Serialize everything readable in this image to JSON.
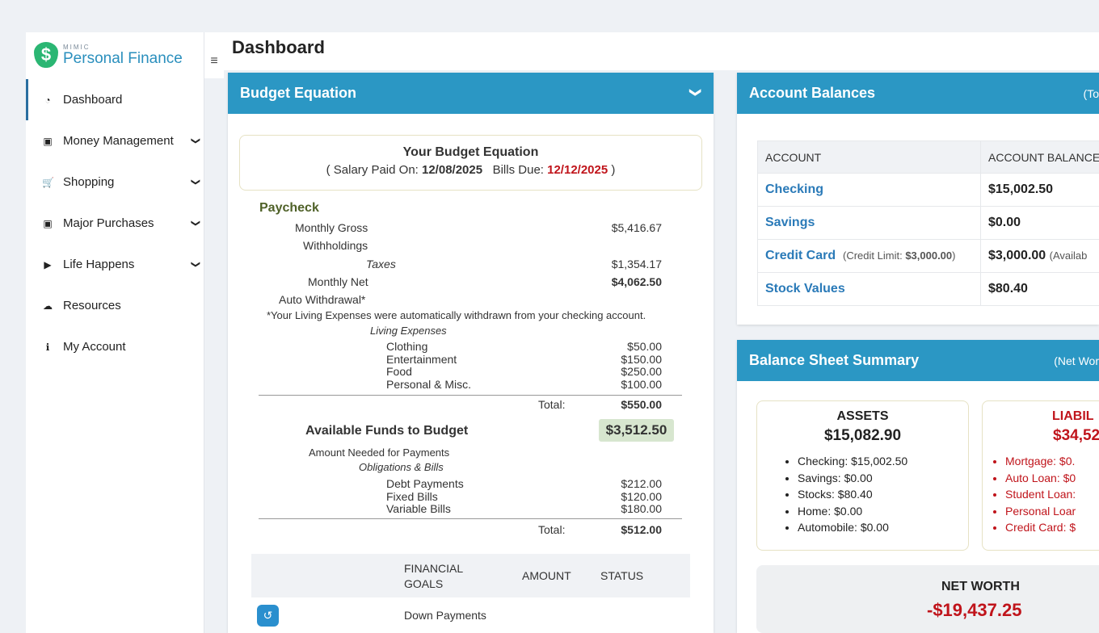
{
  "app": {
    "logo_small": "MIMIC",
    "logo_main": "Personal Finance"
  },
  "sidebar": {
    "items": [
      {
        "label": "Dashboard",
        "icon": "tachometer-icon"
      },
      {
        "label": "Money Management",
        "icon": "money-icon"
      },
      {
        "label": "Shopping",
        "icon": "cart-icon"
      },
      {
        "label": "Major Purchases",
        "icon": "money-icon"
      },
      {
        "label": "Life Happens",
        "icon": "play-circle-icon"
      },
      {
        "label": "Resources",
        "icon": "cloud-download-icon"
      },
      {
        "label": "My Account",
        "icon": "info-circle-icon"
      }
    ]
  },
  "header": {
    "title": "Dashboard"
  },
  "budget": {
    "title": "Budget Equation",
    "eq_title": "Your Budget Equation",
    "eq_salary_prefix": "( Salary Paid On: ",
    "salary_date": "12/08/2025",
    "eq_bills_prefix": "Bills Due: ",
    "bills_date": "12/12/2025",
    "eq_suffix": " )",
    "paycheck": "Paycheck",
    "monthly_gross_label": "Monthly Gross",
    "monthly_gross": "$5,416.67",
    "withholdings_label": "Withholdings",
    "taxes_label": "Taxes",
    "taxes": "$1,354.17",
    "monthly_net_label": "Monthly Net",
    "monthly_net": "$4,062.50",
    "auto_withdrawal_label": "Auto Withdrawal*",
    "auto_note": "*Your Living Expenses were automatically withdrawn from your checking account.",
    "living_expenses_label": "Living Expenses",
    "living": [
      {
        "label": "Clothing",
        "value": "$50.00"
      },
      {
        "label": "Entertainment",
        "value": "$150.00"
      },
      {
        "label": "Food",
        "value": "$250.00"
      },
      {
        "label": "Personal & Misc.",
        "value": "$100.00"
      }
    ],
    "total_label": "Total:",
    "living_total": "$550.00",
    "available_label": "Available Funds to Budget",
    "available_value": "$3,512.50",
    "needed_label": "Amount Needed for Payments",
    "obligations_label": "Obligations & Bills",
    "obligations": [
      {
        "label": "Debt Payments",
        "value": "$212.00"
      },
      {
        "label": "Fixed Bills",
        "value": "$120.00"
      },
      {
        "label": "Variable Bills",
        "value": "$180.00"
      }
    ],
    "obligations_total": "$512.00",
    "goals_headers": {
      "goals_line1": "FINANCIAL",
      "goals_line2": "GOALS",
      "amount": "AMOUNT",
      "status": "STATUS"
    },
    "goals": [
      {
        "label": "Down Payments"
      }
    ]
  },
  "accounts": {
    "title": "Account Balances",
    "note": "(To",
    "headers": {
      "account": "ACCOUNT",
      "balance": "ACCOUNT BALANCE"
    },
    "rows": [
      {
        "name": "Checking",
        "balance": "$15,002.50",
        "extra": ""
      },
      {
        "name": "Savings",
        "balance": "$0.00",
        "extra": ""
      },
      {
        "name": "Credit Card",
        "limit_prefix": "(Credit Limit: ",
        "limit": "$3,000.00",
        "limit_suffix": ")",
        "balance": "$3,000.00",
        "extra": "(Availab"
      },
      {
        "name": "Stock Values",
        "balance": "$80.40",
        "extra": ""
      }
    ]
  },
  "balance_sheet": {
    "title": "Balance Sheet Summary",
    "note": "(Net Wor",
    "assets": {
      "title": "ASSETS",
      "value": "$15,082.90",
      "items": [
        "Checking: $15,002.50",
        "Savings: $0.00",
        "Stocks: $80.40",
        "Home: $0.00",
        "Automobile: $0.00"
      ]
    },
    "liabilities": {
      "title": "LIABIL",
      "value": "$34,52",
      "items": [
        "Mortgage: $0.",
        "Auto Loan: $0",
        "Student Loan:",
        "Personal Loar",
        "Credit Card: $"
      ]
    },
    "net_worth_label": "NET WORTH",
    "net_worth_value": "-$19,437.25"
  },
  "colors": {
    "accent": "#2b97c4",
    "negative": "#c0141b",
    "logo": "#2bb673"
  }
}
